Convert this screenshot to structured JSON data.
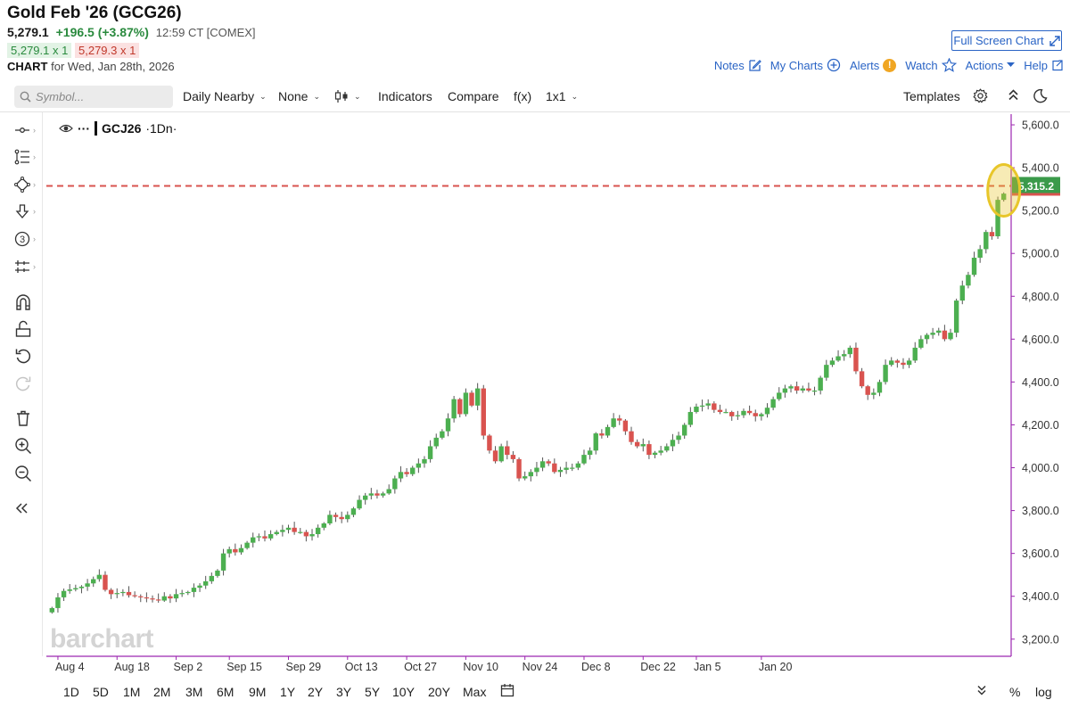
{
  "header": {
    "title": "Gold Feb '26 (GCG26)",
    "last": "5,279.1",
    "change": "+196.5 (+3.87%)",
    "time": "12:59 CT [COMEX]",
    "bid": "5,279.1 x 1",
    "ask": "5,279.3 x 1",
    "chart_label": "CHART",
    "chart_date": "for Wed, Jan 28th, 2026",
    "full_screen": "Full Screen Chart"
  },
  "links": {
    "notes": "Notes",
    "my_charts": "My Charts",
    "alerts": "Alerts",
    "alerts_badge": "!",
    "watch": "Watch",
    "actions": "Actions",
    "help": "Help"
  },
  "toolbar": {
    "symbol_placeholder": "Symbol...",
    "period": "Daily Nearby",
    "overlay": "None",
    "indicators": "Indicators",
    "compare": "Compare",
    "fx": "f(x)",
    "layout": "1x1",
    "templates": "Templates"
  },
  "legend": {
    "dots": "···",
    "symbol": "GCJ26",
    "interval": "·1Dn·"
  },
  "watermark": "barchart",
  "bottom": {
    "ranges": [
      "1D",
      "5D",
      "1M",
      "2M",
      "3M",
      "6M",
      "9M",
      "1Y",
      "2Y",
      "3Y",
      "5Y",
      "10Y",
      "20Y",
      "Max"
    ],
    "percent": "%",
    "log": "log"
  },
  "colors": {
    "up": "#4caf50",
    "down": "#d9534f",
    "link": "#2a64c5",
    "price_line": "#d9534f",
    "price_tag": "#3a9a4a",
    "highlight": "#e8c62a",
    "axis": "#9c27b0"
  },
  "chart_data": {
    "type": "candlestick",
    "symbol": "GCJ26",
    "ylim": [
      3120,
      5650
    ],
    "y_ticks": [
      "5,600.0",
      "5,400.0",
      "5,200.0",
      "5,000.0",
      "4,800.0",
      "4,600.0",
      "4,400.0",
      "4,200.0",
      "4,000.0",
      "3,800.0",
      "3,600.0",
      "3,400.0",
      "3,200.0"
    ],
    "y_tick_values": [
      5600,
      5400,
      5200,
      5000,
      4800,
      4600,
      4400,
      4200,
      4000,
      3800,
      3600,
      3400,
      3200
    ],
    "x_labels": [
      "Aug 4",
      "Aug 18",
      "Sep 2",
      "Sep 15",
      "Sep 29",
      "Oct 13",
      "Oct 27",
      "Nov 10",
      "Nov 24",
      "Dec 8",
      "Dec 22",
      "Jan 5",
      "Jan 20"
    ],
    "x_label_index": [
      1,
      11,
      21,
      30,
      40,
      50,
      60,
      70,
      80,
      90,
      100,
      109,
      120
    ],
    "current_price_label": "5,315.2",
    "current_price": 5315.2,
    "closes": [
      3345,
      3395,
      3425,
      3432,
      3438,
      3445,
      3460,
      3480,
      3500,
      3430,
      3410,
      3415,
      3420,
      3405,
      3400,
      3395,
      3390,
      3385,
      3380,
      3400,
      3390,
      3410,
      3415,
      3420,
      3440,
      3450,
      3470,
      3495,
      3520,
      3600,
      3620,
      3605,
      3625,
      3650,
      3675,
      3680,
      3670,
      3690,
      3700,
      3710,
      3720,
      3700,
      3700,
      3680,
      3690,
      3720,
      3740,
      3780,
      3770,
      3760,
      3780,
      3810,
      3850,
      3870,
      3880,
      3870,
      3880,
      3900,
      3950,
      3980,
      3970,
      4000,
      4020,
      4040,
      4100,
      4140,
      4170,
      4230,
      4320,
      4250,
      4350,
      4290,
      4370,
      4150,
      4080,
      4030,
      4100,
      4060,
      4040,
      3950,
      3960,
      3980,
      4000,
      4030,
      4020,
      3980,
      3990,
      4000,
      4000,
      4020,
      4060,
      4080,
      4160,
      4150,
      4190,
      4230,
      4220,
      4170,
      4120,
      4100,
      4110,
      4060,
      4070,
      4080,
      4100,
      4130,
      4150,
      4200,
      4260,
      4285,
      4290,
      4300,
      4270,
      4260,
      4260,
      4240,
      4245,
      4265,
      4255,
      4240,
      4250,
      4280,
      4320,
      4350,
      4370,
      4380,
      4360,
      4370,
      4360,
      4360,
      4420,
      4480,
      4500,
      4520,
      4530,
      4560,
      4450,
      4380,
      4340,
      4350,
      4400,
      4480,
      4500,
      4490,
      4480,
      4500,
      4560,
      4600,
      4620,
      4630,
      4640,
      4600,
      4630,
      4780,
      4850,
      4900,
      4980,
      5020,
      5100,
      5080,
      5250,
      5279
    ]
  }
}
